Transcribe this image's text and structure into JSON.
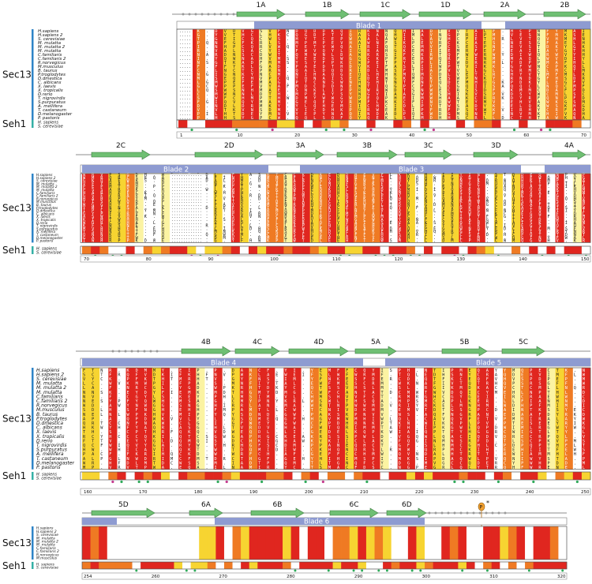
{
  "groups": {
    "sec13": "Sec13",
    "seh1": "Seh1"
  },
  "sec13_species": [
    "H.sapiens",
    "H.sapiens 2",
    "S. cerevisiae",
    "M. mulatta",
    "M. mulatta 2",
    "M. mulatta",
    "C.familiaris",
    "C.familiaris 2",
    "R.norvegicus",
    "M.musculus",
    "B. taurus",
    "P.troglodytes",
    "D.dmestica",
    "C. albicans",
    "X. laevis",
    "X. tropicalis",
    "D.rerio",
    "T. nigrovirdis",
    "S.purpuratus",
    "A. mellifera",
    "T. castaneum",
    "D.melanogaster",
    "P. pastoris"
  ],
  "seh1_species": [
    "H. sapiens",
    "S. cerevisiae"
  ],
  "blocks": [
    {
      "strands": [
        "1A",
        "1B",
        "1C",
        "1D",
        "2A",
        "2B"
      ],
      "blades": [
        "Blade 1"
      ],
      "ruler": [
        "1",
        "10",
        "20",
        "30",
        "40",
        "50",
        "60",
        "70"
      ],
      "prefix": "MREPVLTWACAGKDENGRM",
      "insert": "MLDSKCYR"
    },
    {
      "strands": [
        "2C",
        "2D",
        "3A",
        "3B",
        "3C",
        "3D",
        "4A"
      ],
      "blades": [
        "Blade 2",
        "Blade 3"
      ],
      "ruler": [
        "70",
        "80",
        "90",
        "100",
        "110",
        "120",
        "130",
        "140",
        "150"
      ]
    },
    {
      "strands": [
        "4B",
        "4C",
        "4D",
        "5A",
        "5B",
        "5C"
      ],
      "blades": [
        "Blade 4",
        "Blade 5"
      ],
      "ruler": [
        "160",
        "170",
        "180",
        "190",
        "200",
        "210",
        "220",
        "230",
        "240",
        "250"
      ]
    },
    {
      "strands": [
        "5D",
        "6A",
        "6B",
        "6C",
        "6D"
      ],
      "blades": [
        "Blade 6"
      ],
      "ruler": [
        "254",
        "260",
        "270",
        "280",
        "290",
        "300",
        "310",
        "320"
      ],
      "phospho": "P",
      "asterisk": "*"
    }
  ],
  "colors": {
    "red": "#e0261f",
    "orange": "#ef7a23",
    "yellow": "#f7d431",
    "paleyellow": "#fbf3a2",
    "blade": "#8e9bd1",
    "arrow": "#6fbf73",
    "teal": "#2aa4a8",
    "sec13_bar": "#2f84c7",
    "seh1_bar": "#35b0a6",
    "phospho": "#f2a030"
  }
}
